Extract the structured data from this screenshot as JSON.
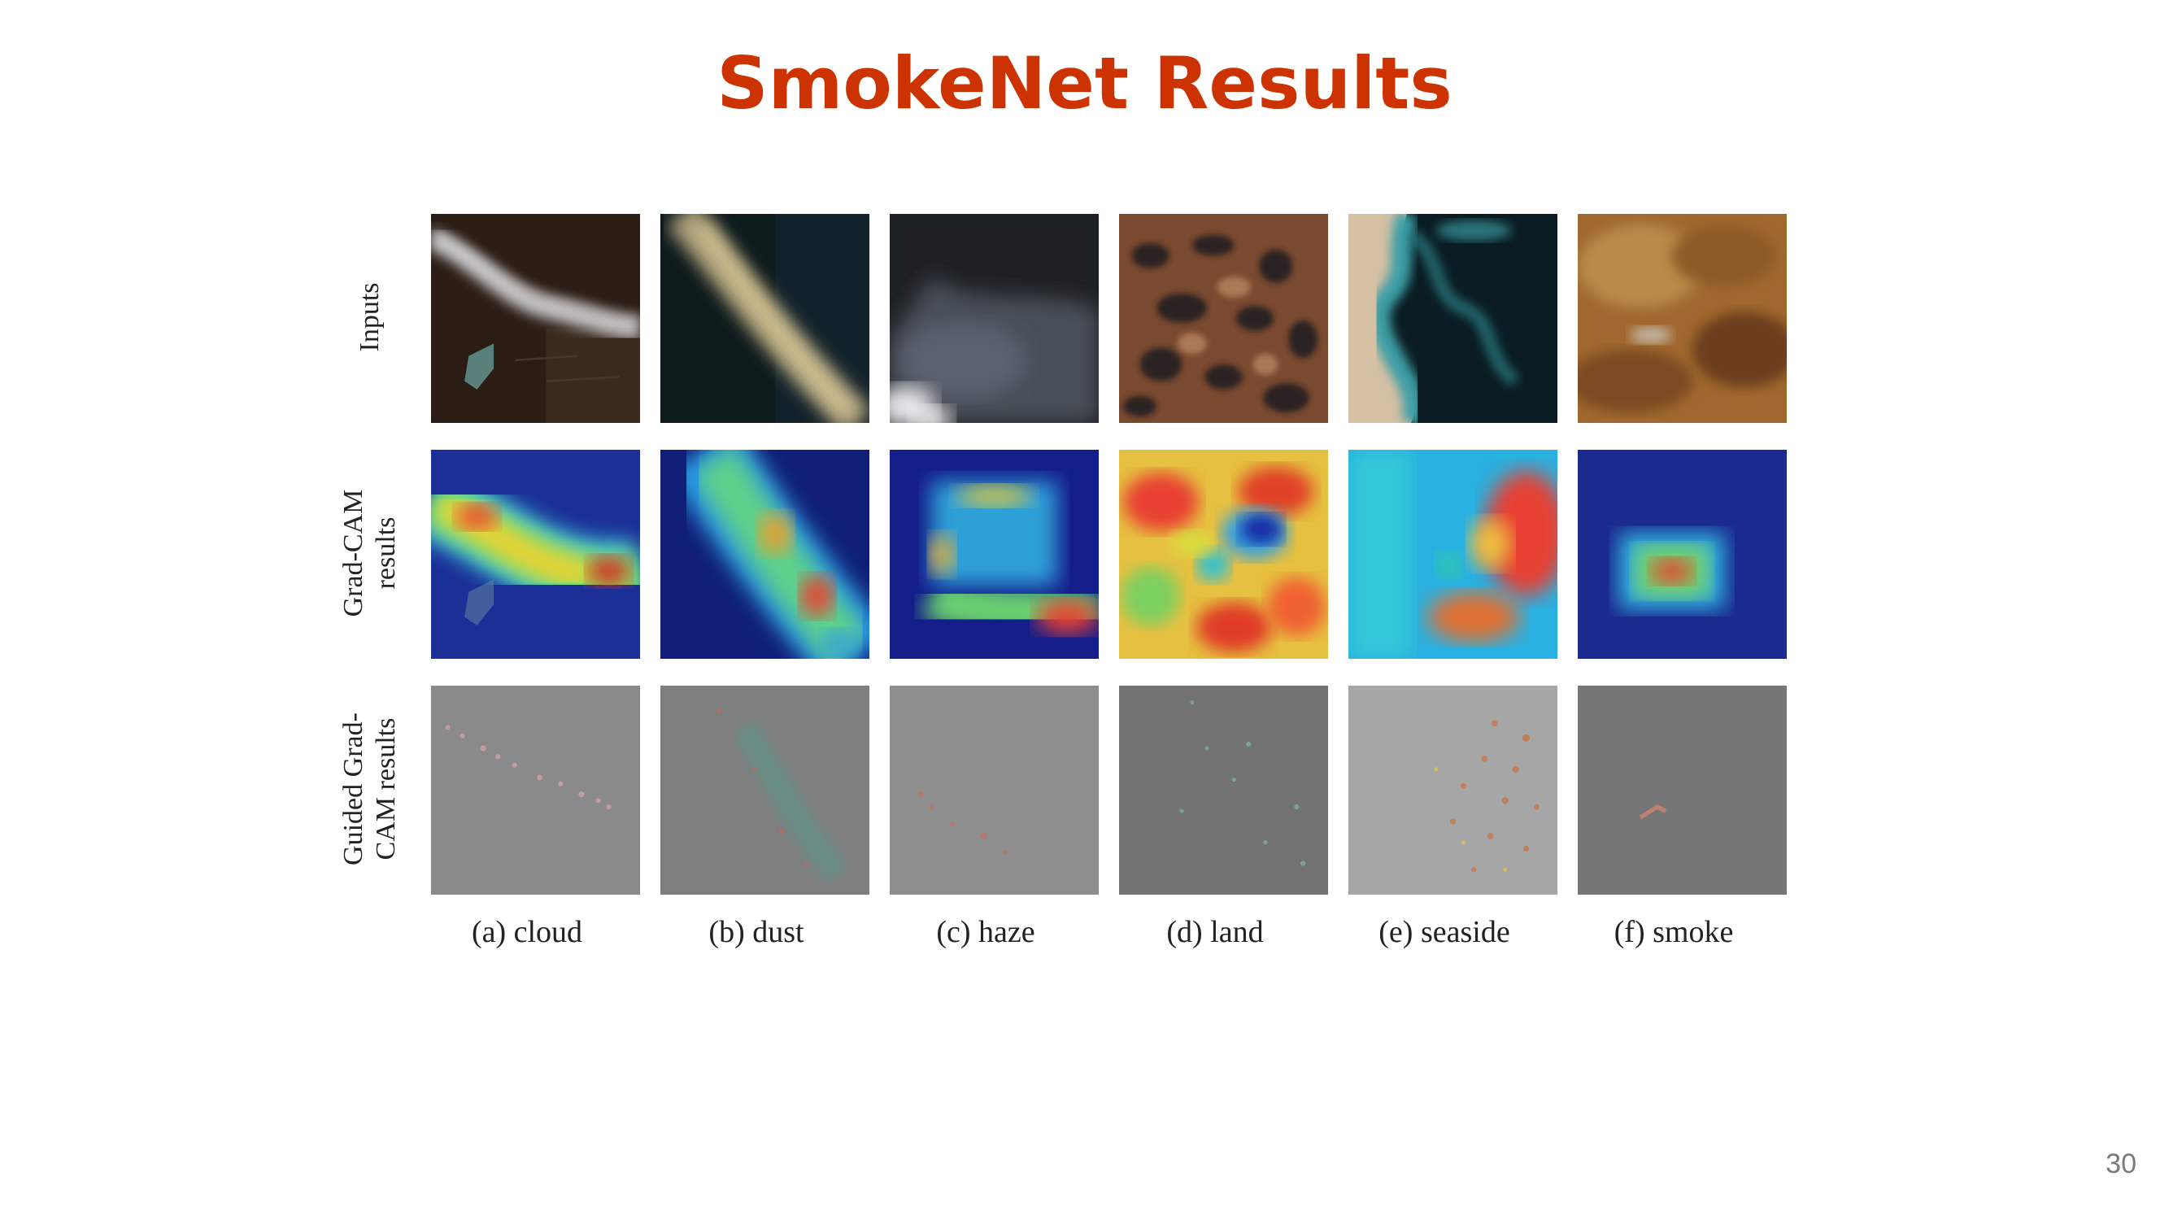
{
  "slide": {
    "title": "SmokeNet Results",
    "page_number": "30"
  },
  "figure": {
    "row_labels": [
      {
        "lines": [
          "Inputs"
        ]
      },
      {
        "lines": [
          "Grad-CAM",
          "results"
        ]
      },
      {
        "lines": [
          "Guided Grad-",
          "CAM results"
        ]
      }
    ],
    "columns": [
      {
        "label": "(a) cloud"
      },
      {
        "label": "(b) dust"
      },
      {
        "label": "(c) haze"
      },
      {
        "label": "(d) land"
      },
      {
        "label": "(e) seaside"
      },
      {
        "label": "(f) smoke"
      }
    ]
  }
}
